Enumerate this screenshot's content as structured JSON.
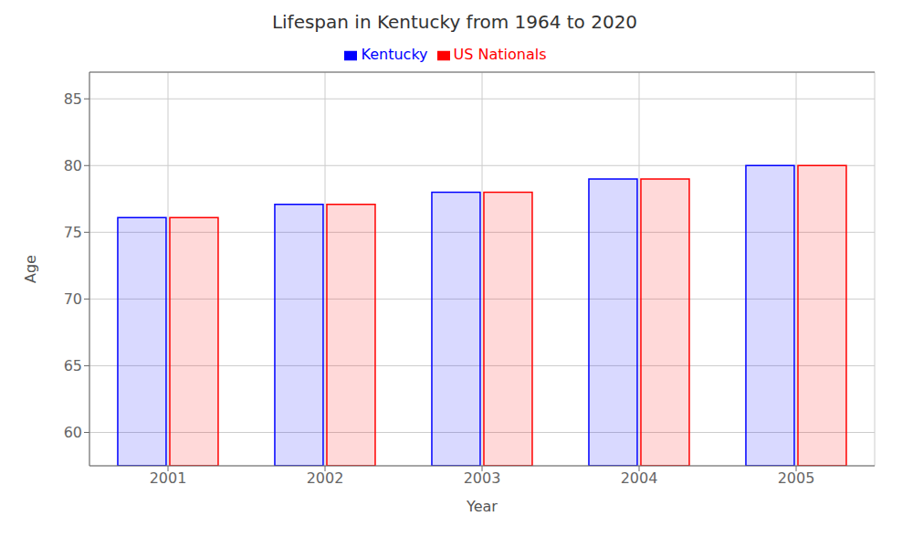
{
  "chart_data": {
    "type": "bar",
    "title": "Lifespan in Kentucky from 1964 to 2020",
    "x_label": "Year",
    "y_label": "Age",
    "categories": [
      "2001",
      "2002",
      "2003",
      "2004",
      "2005"
    ],
    "series": [
      {
        "name": "Kentucky",
        "color": "#0000ff",
        "values": [
          76.1,
          77.1,
          78.0,
          79.0,
          80.0
        ]
      },
      {
        "name": "US Nationals",
        "color": "#ff0000",
        "values": [
          76.1,
          77.1,
          78.0,
          79.0,
          80.0
        ]
      }
    ],
    "ylim": [
      57.5,
      87
    ],
    "yticks": [
      60,
      65,
      70,
      75,
      80,
      85
    ],
    "grid": true,
    "legend": "top"
  }
}
